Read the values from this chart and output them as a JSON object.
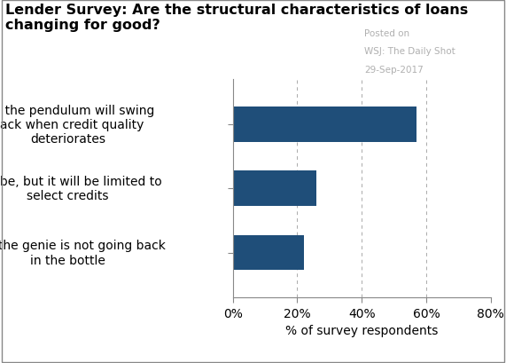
{
  "title": "Lender Survey: Are the structural characteristics of loans changing for good?",
  "subtitle_line1": "Posted on",
  "subtitle_line2": "WSJ: The Daily Shot",
  "subtitle_line3": "29-Sep-2017",
  "xlabel": "% of survey respondents",
  "categories": [
    "Yes, the genie is not going back\nin the bottle",
    "Maybe, but it will be limited to\nselect credits",
    "No, the pendulum will swing\nback when credit quality\ndeteriorates"
  ],
  "values": [
    22,
    26,
    57
  ],
  "bar_color": "#1f4e79",
  "xlim": [
    0,
    80
  ],
  "xticks": [
    0,
    20,
    40,
    60,
    80
  ],
  "xtick_labels": [
    "0%",
    "20%",
    "40%",
    "60%",
    "80%"
  ],
  "grid_color": "#aaaaaa",
  "background_color": "#ffffff",
  "title_fontsize": 11.5,
  "label_fontsize": 10,
  "xlabel_fontsize": 10,
  "subtitle_fontsize": 7.5,
  "subtitle_color": "#b0b0b0",
  "border_color": "#888888"
}
